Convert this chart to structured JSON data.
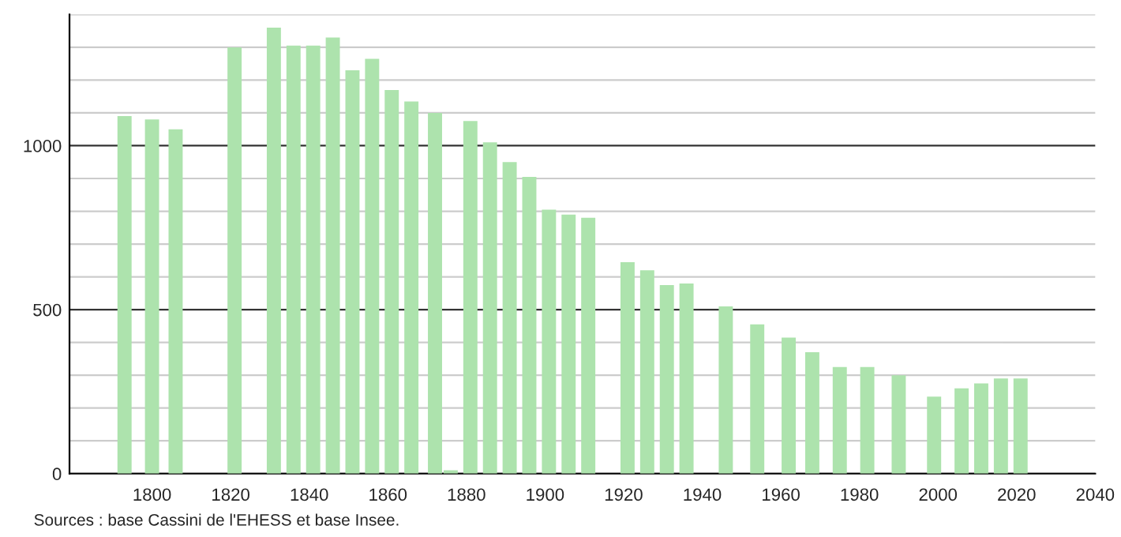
{
  "chart_data": {
    "type": "bar",
    "color": "#ade3ad",
    "x": [
      1793,
      1800,
      1806,
      1821,
      1831,
      1836,
      1841,
      1846,
      1851,
      1856,
      1861,
      1866,
      1872,
      1876,
      1881,
      1886,
      1891,
      1896,
      1901,
      1906,
      1911,
      1921,
      1926,
      1931,
      1936,
      1946,
      1954,
      1962,
      1968,
      1975,
      1982,
      1990,
      1999,
      2006,
      2011,
      2016,
      2021
    ],
    "values": [
      1090,
      1080,
      1050,
      1300,
      1360,
      1305,
      1305,
      1330,
      1230,
      1265,
      1170,
      1135,
      1100,
      10,
      1075,
      1010,
      950,
      905,
      805,
      790,
      780,
      645,
      620,
      575,
      580,
      510,
      455,
      415,
      370,
      325,
      325,
      300,
      235,
      260,
      275,
      290,
      290
    ],
    "xlim": [
      1779,
      2040
    ],
    "xticks": [
      1800,
      1820,
      1840,
      1860,
      1880,
      1900,
      1920,
      1940,
      1960,
      1980,
      2000,
      2020,
      2040
    ],
    "ylim": [
      0,
      1400
    ],
    "yticks": [
      0,
      {
        "value": 100,
        "label": null
      },
      {
        "value": 200,
        "label": null
      },
      {
        "value": 300,
        "label": null
      },
      {
        "value": 400,
        "label": null
      },
      500,
      {
        "value": 600,
        "label": null
      },
      {
        "value": 700,
        "label": null
      },
      {
        "value": 800,
        "label": null
      },
      {
        "value": 900,
        "label": null
      },
      1000,
      {
        "value": 1100,
        "label": null
      },
      {
        "value": 1200,
        "label": null
      },
      {
        "value": 1300,
        "label": null
      },
      {
        "value": 1400,
        "label": null
      }
    ],
    "grid": "y",
    "annotations": [
      "Sources : base Cassini de l'EHESS et base Insee."
    ]
  }
}
